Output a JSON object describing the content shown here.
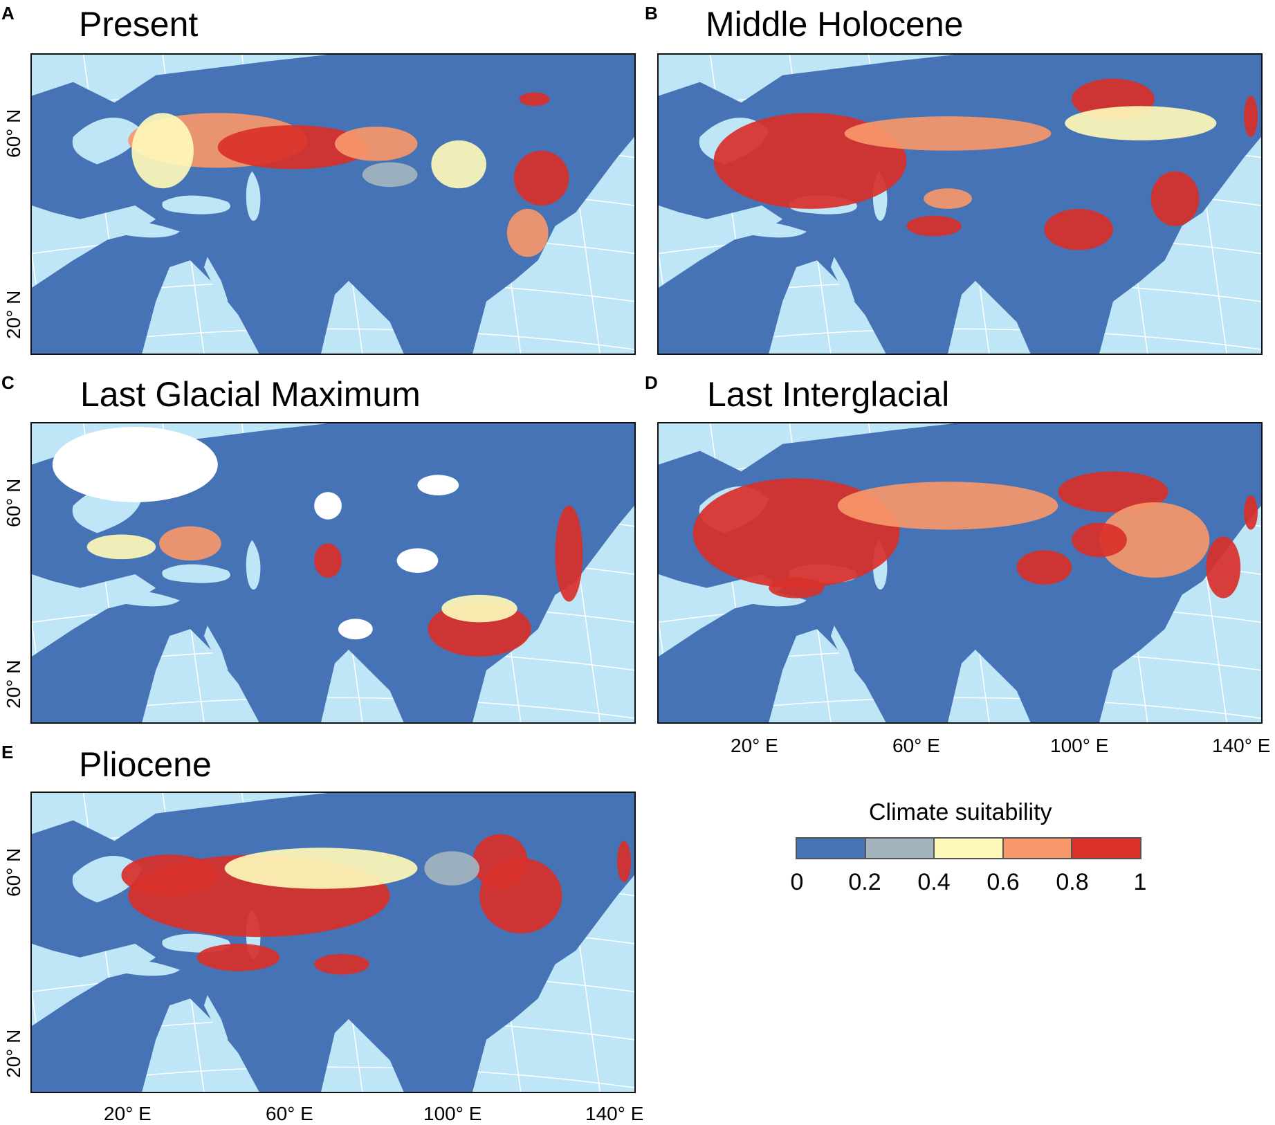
{
  "colors": {
    "ocean": "#bfe6f7",
    "land": "#4573b5",
    "ice": "#ffffff",
    "class_colors": [
      "#4573b5",
      "#a3b4bf",
      "#fef9b8",
      "#f7976a",
      "#d9302a"
    ]
  },
  "panels": [
    {
      "letter": "A",
      "title": "Present",
      "y_labels": [
        "60° N",
        "20° N"
      ],
      "x_labels": []
    },
    {
      "letter": "B",
      "title": "Middle Holocene",
      "y_labels": [],
      "x_labels": []
    },
    {
      "letter": "C",
      "title": "Last Glacial Maximum",
      "y_labels": [
        "60° N",
        "20° N"
      ],
      "x_labels": []
    },
    {
      "letter": "D",
      "title": "Last Interglacial",
      "y_labels": [],
      "x_labels": [
        "20° E",
        "60° E",
        "100° E",
        "140° E"
      ]
    },
    {
      "letter": "E",
      "title": "Pliocene",
      "y_labels": [
        "60° N",
        "20° N"
      ],
      "x_labels": [
        "20° E",
        "60° E",
        "100° E",
        "140° E"
      ]
    }
  ],
  "legend": {
    "title": "Climate suitability",
    "ticks": [
      "0",
      "0.2",
      "0.4",
      "0.6",
      "0.8",
      "1"
    ]
  }
}
